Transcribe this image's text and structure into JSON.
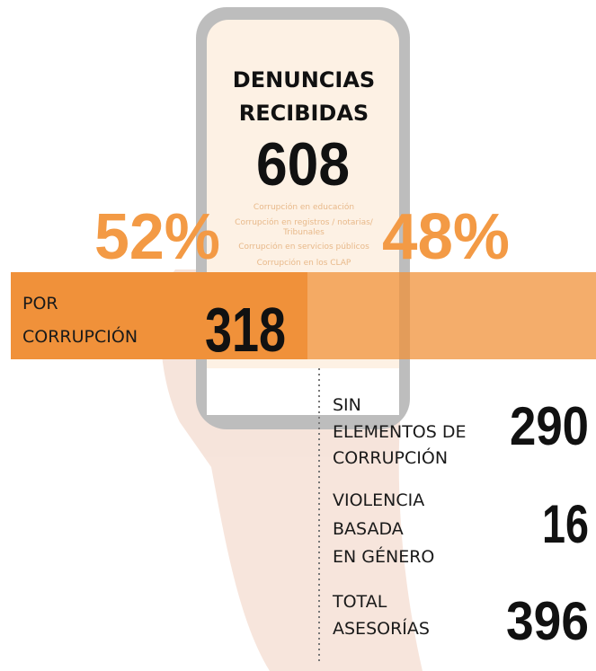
{
  "header": {
    "title_lines": [
      "DENUNCIAS",
      "RECIBIDAS"
    ],
    "total": "608"
  },
  "split": {
    "left_percent": "52%",
    "right_percent": "48%"
  },
  "main": {
    "label_lines": [
      "POR",
      "CORRUPCIÓN"
    ],
    "value": "318"
  },
  "items": [
    {
      "label_lines": [
        "SIN",
        "ELEMENTOS DE",
        "CORRUPCIÓN"
      ],
      "value": "290"
    },
    {
      "label_lines": [
        "VIOLENCIA",
        "BASADA",
        "EN GÉNERO"
      ],
      "value": "16"
    },
    {
      "label_lines": [
        "TOTAL",
        "ASESORÍAS"
      ],
      "value": "396"
    }
  ],
  "background_app": {
    "menu": [
      "Corrupción en educación",
      "Corrupción en registros / notarias/",
      "Tribunales",
      "Corrupción en servicios públicos",
      "Corrupción en los CLAP"
    ]
  }
}
